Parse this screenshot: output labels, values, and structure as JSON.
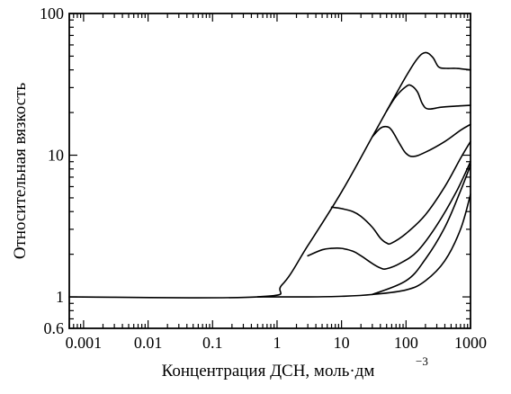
{
  "chart_data": {
    "type": "line",
    "xlabel": "Концентрация ДСН, моль·дм",
    "xlabel_exponent": "−3",
    "ylabel": "Относительная вязкость",
    "xscale": "log",
    "yscale": "log",
    "xlim": [
      0.0006,
      1000
    ],
    "ylim": [
      0.6,
      100
    ],
    "x_ticks": [
      {
        "value": 0.001,
        "label": "0.001"
      },
      {
        "value": 0.01,
        "label": "0.01"
      },
      {
        "value": 0.1,
        "label": "0.1"
      },
      {
        "value": 1,
        "label": "1"
      },
      {
        "value": 10,
        "label": "10"
      },
      {
        "value": 100,
        "label": "100"
      },
      {
        "value": 1000,
        "label": "1000"
      }
    ],
    "y_ticks": [
      {
        "value": 0.6,
        "label": "0.6"
      },
      {
        "value": 1,
        "label": "1"
      },
      {
        "value": 10,
        "label": "10"
      },
      {
        "value": 100,
        "label": "100"
      }
    ],
    "grid": false,
    "line_color": "#000000",
    "series": [
      {
        "points": [
          [
            0.0006,
            1
          ],
          [
            0.5,
            1
          ],
          [
            1.2,
            1.22
          ],
          [
            3,
            2.3
          ],
          [
            10,
            5.5
          ],
          [
            30,
            13.5
          ],
          [
            50,
            20.5
          ],
          [
            100,
            36
          ],
          [
            150,
            48
          ],
          [
            200,
            53
          ],
          [
            260,
            49
          ],
          [
            320,
            42
          ],
          [
            420,
            41
          ],
          [
            600,
            41
          ],
          [
            1000,
            40
          ]
        ]
      },
      {
        "points": [
          [
            50,
            20.5
          ],
          [
            70,
            26
          ],
          [
            100,
            30.5
          ],
          [
            120,
            31
          ],
          [
            150,
            28
          ],
          [
            180,
            23
          ],
          [
            220,
            21.2
          ],
          [
            350,
            21.8
          ],
          [
            600,
            22.2
          ],
          [
            1000,
            22.5
          ]
        ]
      },
      {
        "points": [
          [
            30,
            13.5
          ],
          [
            40,
            15.5
          ],
          [
            50,
            15.9
          ],
          [
            60,
            15
          ],
          [
            80,
            12
          ],
          [
            100,
            10.3
          ],
          [
            130,
            9.8
          ],
          [
            200,
            10.5
          ],
          [
            400,
            12.5
          ],
          [
            700,
            15
          ],
          [
            1000,
            16.5
          ]
        ]
      },
      {
        "points": [
          [
            7,
            4.3
          ],
          [
            10,
            4.2
          ],
          [
            15,
            4
          ],
          [
            20,
            3.7
          ],
          [
            30,
            3.1
          ],
          [
            40,
            2.6
          ],
          [
            50,
            2.4
          ],
          [
            60,
            2.4
          ],
          [
            100,
            2.8
          ],
          [
            200,
            3.8
          ],
          [
            400,
            6
          ],
          [
            700,
            9.5
          ],
          [
            1000,
            12.5
          ]
        ]
      },
      {
        "points": [
          [
            3,
            1.95
          ],
          [
            5,
            2.15
          ],
          [
            7,
            2.2
          ],
          [
            10,
            2.2
          ],
          [
            15,
            2.1
          ],
          [
            20,
            1.95
          ],
          [
            30,
            1.72
          ],
          [
            40,
            1.6
          ],
          [
            50,
            1.58
          ],
          [
            80,
            1.72
          ],
          [
            150,
            2.1
          ],
          [
            300,
            3.2
          ],
          [
            600,
            5.5
          ],
          [
            1000,
            9
          ]
        ]
      },
      {
        "points": [
          [
            0.5,
            1
          ],
          [
            3,
            1
          ],
          [
            10,
            1.01
          ],
          [
            30,
            1.04
          ],
          [
            100,
            1.12
          ],
          [
            200,
            1.3
          ],
          [
            400,
            1.8
          ],
          [
            700,
            3
          ],
          [
            1000,
            5.3
          ]
        ]
      },
      {
        "points": [
          [
            30,
            1.04
          ],
          [
            100,
            1.3
          ],
          [
            200,
            1.85
          ],
          [
            400,
            3.1
          ],
          [
            700,
            5.6
          ],
          [
            1000,
            8.5
          ]
        ]
      }
    ]
  }
}
